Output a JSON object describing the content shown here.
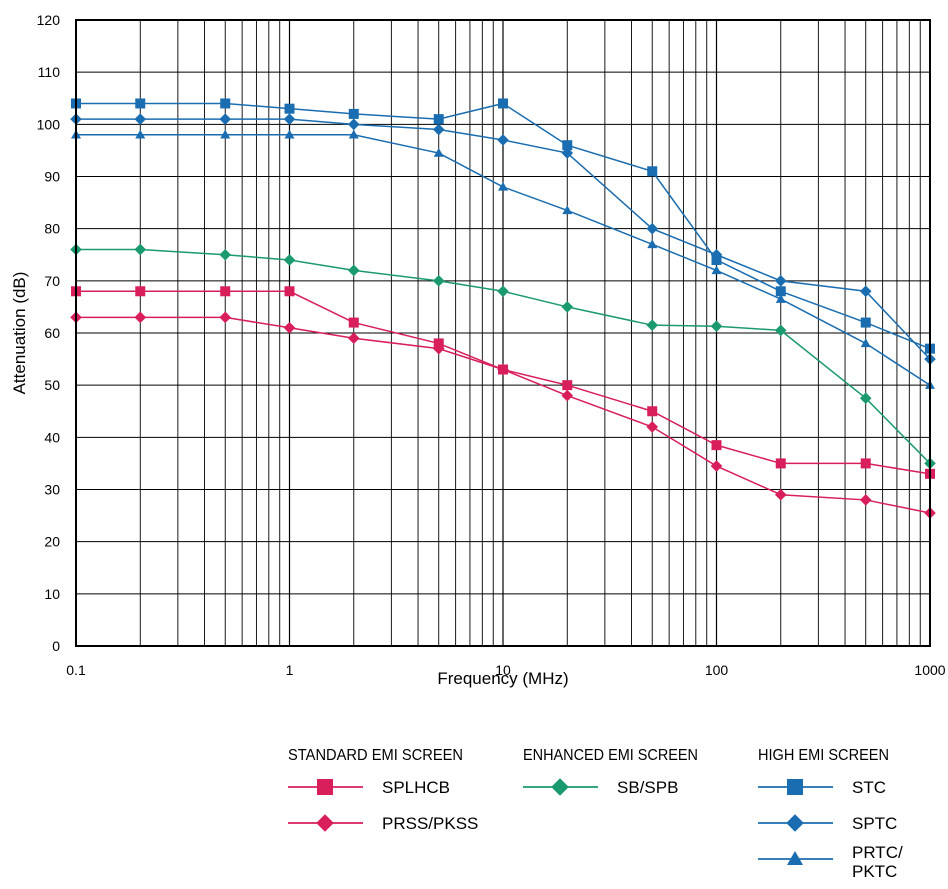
{
  "chart_data": {
    "type": "line",
    "xlabel": "Frequency (MHz)",
    "ylabel": "Attenuation (dB)",
    "x_scale": "log",
    "xlim": [
      0.1,
      1000
    ],
    "ylim": [
      0,
      120
    ],
    "x_tick_labels": [
      "0.1",
      "1",
      "10",
      "100",
      "1000"
    ],
    "y_tick_labels": [
      "0",
      "10",
      "20",
      "30",
      "40",
      "50",
      "60",
      "70",
      "80",
      "90",
      "100",
      "110",
      "120"
    ],
    "grid": true,
    "legend_groups": [
      {
        "title": "STANDARD EMI SCREEN",
        "series": [
          "SPLHCB",
          "PRSS/PKSS"
        ]
      },
      {
        "title": "ENHANCED EMI SCREEN",
        "series": [
          "SB/SPB"
        ]
      },
      {
        "title": "HIGH EMI SCREEN",
        "series": [
          "STC",
          "SPTC",
          "PRTC/ PKTC"
        ]
      }
    ],
    "series": [
      {
        "name": "STC",
        "color": "#1a6db0",
        "marker": "square",
        "x": [
          0.1,
          0.2,
          0.5,
          1,
          2,
          5,
          10,
          20,
          50,
          100,
          200,
          500,
          1000
        ],
        "y": [
          104,
          104,
          104,
          103,
          102,
          101,
          104,
          96,
          91,
          74,
          68,
          62,
          57
        ]
      },
      {
        "name": "SPTC",
        "color": "#1a6db0",
        "marker": "diamond",
        "x": [
          0.1,
          0.2,
          0.5,
          1,
          2,
          5,
          10,
          20,
          50,
          100,
          200,
          500,
          1000
        ],
        "y": [
          101,
          101,
          101,
          101,
          100,
          99,
          97,
          94.5,
          80,
          75,
          70,
          68,
          55
        ]
      },
      {
        "name": "PRTC/ PKTC",
        "color": "#1a6db0",
        "marker": "triangle",
        "x": [
          0.1,
          0.2,
          0.5,
          1,
          2,
          5,
          10,
          20,
          50,
          100,
          200,
          500,
          1000
        ],
        "y": [
          98,
          98,
          98,
          98,
          98,
          94.5,
          88,
          83.5,
          77,
          72,
          66.5,
          58,
          50
        ]
      },
      {
        "name": "SB/SPB",
        "color": "#1a9a6e",
        "marker": "diamond",
        "x": [
          0.1,
          0.2,
          0.5,
          1,
          2,
          5,
          10,
          20,
          50,
          100,
          200,
          500,
          1000
        ],
        "y": [
          76,
          76,
          75,
          74,
          72,
          70,
          68,
          65,
          61.5,
          61.3,
          60.5,
          47.5,
          35
        ]
      },
      {
        "name": "SPLHCB",
        "color": "#d81e5b",
        "marker": "square",
        "x": [
          0.1,
          0.2,
          0.5,
          1,
          2,
          5,
          10,
          20,
          50,
          100,
          200,
          500,
          1000
        ],
        "y": [
          68,
          68,
          68,
          68,
          62,
          58,
          53,
          50,
          45,
          38.5,
          35,
          35,
          33
        ]
      },
      {
        "name": "PRSS/PKSS",
        "color": "#d81e5b",
        "marker": "diamond",
        "x": [
          0.1,
          0.2,
          0.5,
          1,
          2,
          5,
          10,
          20,
          50,
          100,
          200,
          500,
          1000
        ],
        "y": [
          63,
          63,
          63,
          61,
          59,
          57,
          53,
          48,
          42,
          34.5,
          29,
          28,
          25.5
        ]
      }
    ]
  }
}
